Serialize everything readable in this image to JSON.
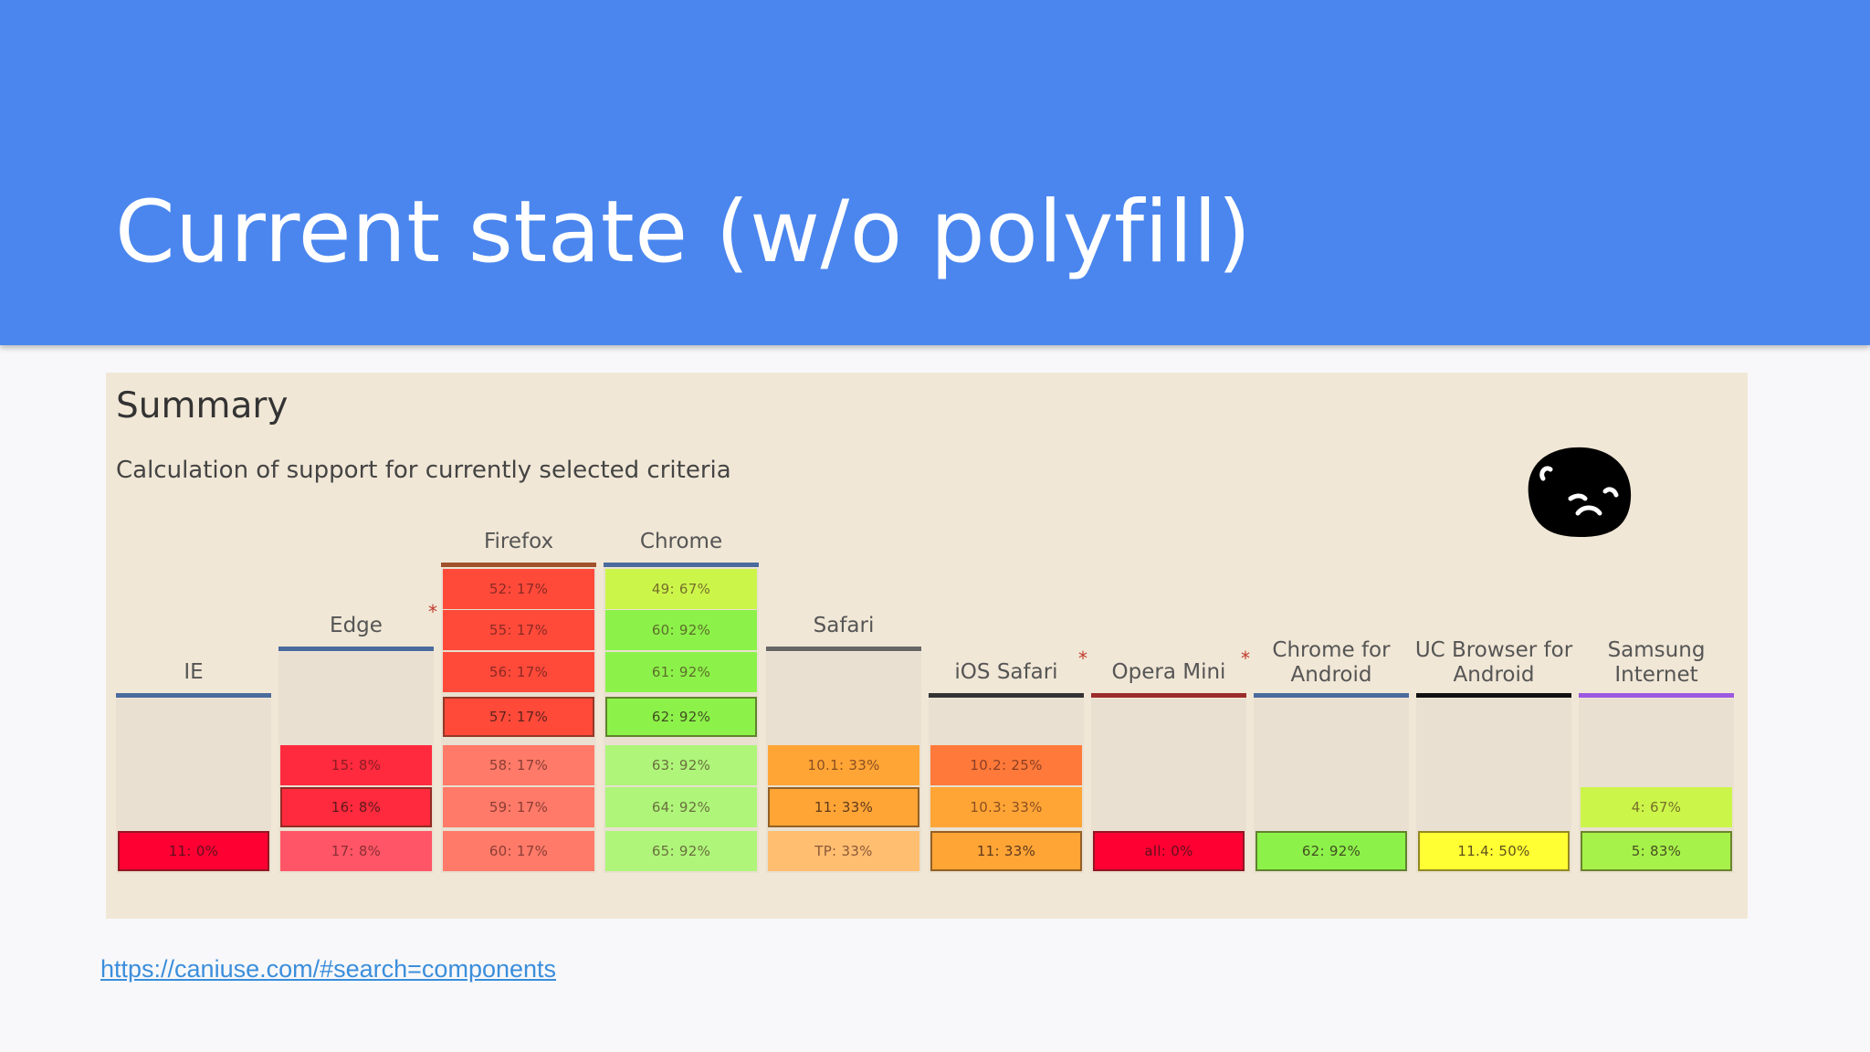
{
  "slide": {
    "title": "Current state (w/o polyfill)",
    "header_color": "#4a86ee"
  },
  "summary": {
    "title": "Summary",
    "subtitle": "Calculation of support for currently selected criteria",
    "mascot_icon": "sad-face-icon"
  },
  "browsers": [
    {
      "name": "IE",
      "asterisk": false,
      "bar_color": "#4b6b9e",
      "cells": [
        {
          "label": "11: 0%",
          "color": "#ff0033",
          "current": true
        }
      ]
    },
    {
      "name": "Edge",
      "asterisk": true,
      "bar_color": "#4b6b9e",
      "cells": [
        {
          "label": "15: 8%",
          "color": "#ff2a3d"
        },
        {
          "label": "16: 8%",
          "color": "#ff2a3d",
          "current": true
        },
        {
          "label": "17: 8%",
          "color": "#ff5566"
        }
      ]
    },
    {
      "name": "Firefox",
      "asterisk": false,
      "bar_color": "#a0522d",
      "cells": [
        {
          "label": "52: 17%",
          "color": "#ff4a3a"
        },
        {
          "label": "55: 17%",
          "color": "#ff4a3a"
        },
        {
          "label": "56: 17%",
          "color": "#ff4a3a"
        },
        {
          "label": "57: 17%",
          "color": "#ff4a3a",
          "current": true
        },
        {
          "label": "58: 17%",
          "color": "#ff7a68"
        },
        {
          "label": "59: 17%",
          "color": "#ff7a68"
        },
        {
          "label": "60: 17%",
          "color": "#ff7a68"
        }
      ]
    },
    {
      "name": "Chrome",
      "asterisk": false,
      "bar_color": "#4b6b9e",
      "cells": [
        {
          "label": "49: 67%",
          "color": "#ccf54a"
        },
        {
          "label": "60: 92%",
          "color": "#8cf24a"
        },
        {
          "label": "61: 92%",
          "color": "#8cf24a"
        },
        {
          "label": "62: 92%",
          "color": "#8cf24a",
          "current": true
        },
        {
          "label": "63: 92%",
          "color": "#aef57a"
        },
        {
          "label": "64: 92%",
          "color": "#aef57a"
        },
        {
          "label": "65: 92%",
          "color": "#aef57a"
        }
      ]
    },
    {
      "name": "Safari",
      "asterisk": false,
      "bar_color": "#666666",
      "cells": [
        {
          "label": "10.1: 33%",
          "color": "#ffa536"
        },
        {
          "label": "11: 33%",
          "color": "#ffa536",
          "current": true
        },
        {
          "label": "TP: 33%",
          "color": "#ffbe70"
        }
      ]
    },
    {
      "name": "iOS Safari",
      "asterisk": true,
      "bar_color": "#333333",
      "cells": [
        {
          "label": "10.2: 25%",
          "color": "#ff7a3a"
        },
        {
          "label": "10.3: 33%",
          "color": "#ffa536"
        },
        {
          "label": "11: 33%",
          "color": "#ffa536",
          "current": true
        }
      ]
    },
    {
      "name": "Opera Mini",
      "asterisk": true,
      "bar_color": "#9b2c2c",
      "cells": [
        {
          "label": "all: 0%",
          "color": "#ff0033",
          "current": true
        }
      ]
    },
    {
      "name": "Chrome for Android",
      "asterisk": false,
      "bar_color": "#4b6b9e",
      "cells": [
        {
          "label": "62: 92%",
          "color": "#8cf24a",
          "current": true
        }
      ]
    },
    {
      "name": "UC Browser for Android",
      "asterisk": false,
      "bar_color": "#111111",
      "cells": [
        {
          "label": "11.4: 50%",
          "color": "#ffff33",
          "current": true
        }
      ]
    },
    {
      "name": "Samsung Internet",
      "asterisk": false,
      "bar_color": "#9b59e0",
      "cells": [
        {
          "label": "4: 67%",
          "color": "#ccf54a"
        },
        {
          "label": "5: 83%",
          "color": "#a6f24a",
          "current": true
        }
      ]
    }
  ],
  "footer": {
    "link_text": "https://caniuse.com/#search=components"
  }
}
